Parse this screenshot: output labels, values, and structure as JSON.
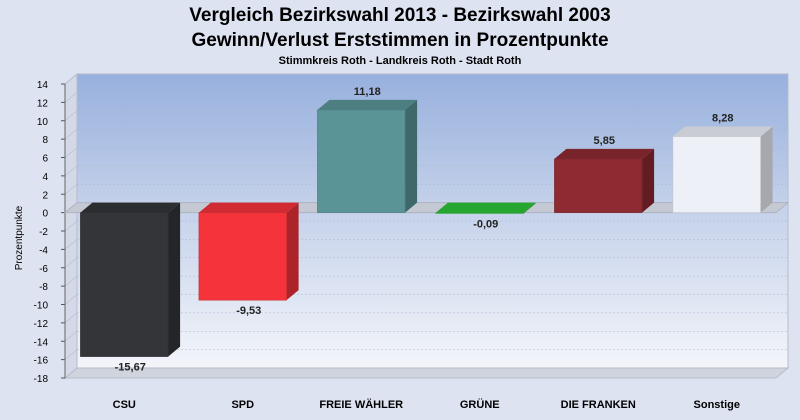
{
  "chart_data": {
    "type": "bar",
    "title": "Vergleich Bezirkswahl 2013 - Bezirkswahl 2003",
    "subtitle": "Gewinn/Verlust Erststimmen in Prozentpunkte",
    "subsubtitle": "Stimmkreis Roth - Landkreis Roth - Stadt Roth",
    "ylabel": "Prozentpunkte",
    "xlabel": "",
    "ylim": [
      -18,
      14
    ],
    "yticks": [
      14,
      12,
      10,
      8,
      6,
      4,
      2,
      0,
      -2,
      -4,
      -6,
      -8,
      -10,
      -12,
      -14,
      -16,
      -18
    ],
    "categories": [
      "CSU",
      "SPD",
      "FREIE WÄHLER",
      "GRÜNE",
      "DIE FRANKEN",
      "Sonstige"
    ],
    "values": [
      -15.67,
      -9.53,
      11.18,
      -0.09,
      5.85,
      8.28
    ],
    "value_labels": [
      "-15,67",
      "-9,53",
      "11,18",
      "-0,09",
      "5,85",
      "8,28"
    ],
    "colors": [
      "#333539",
      "#f5333b",
      "#5a9497",
      "#2ec23a",
      "#8e2a31",
      "#eef0f8"
    ],
    "grid": true,
    "legend": "none",
    "three_d": true
  }
}
